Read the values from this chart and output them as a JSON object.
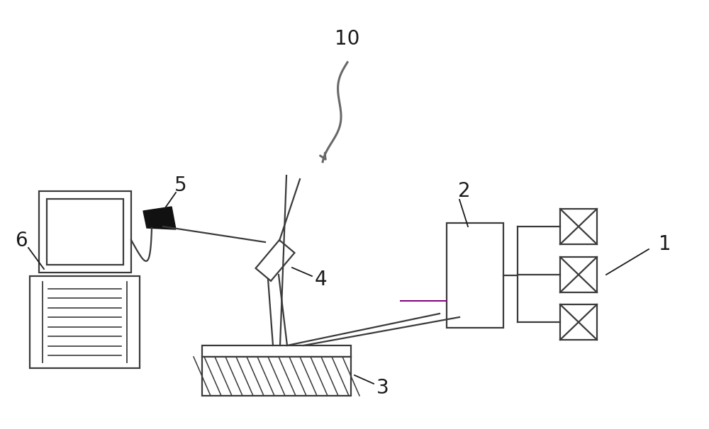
{
  "bg_color": "#ffffff",
  "line_color": "#3a3a3a",
  "label_color": "#1a1a1a",
  "label_fontsize": 20,
  "wavy_color": "#686868",
  "purple_color": "#800080"
}
